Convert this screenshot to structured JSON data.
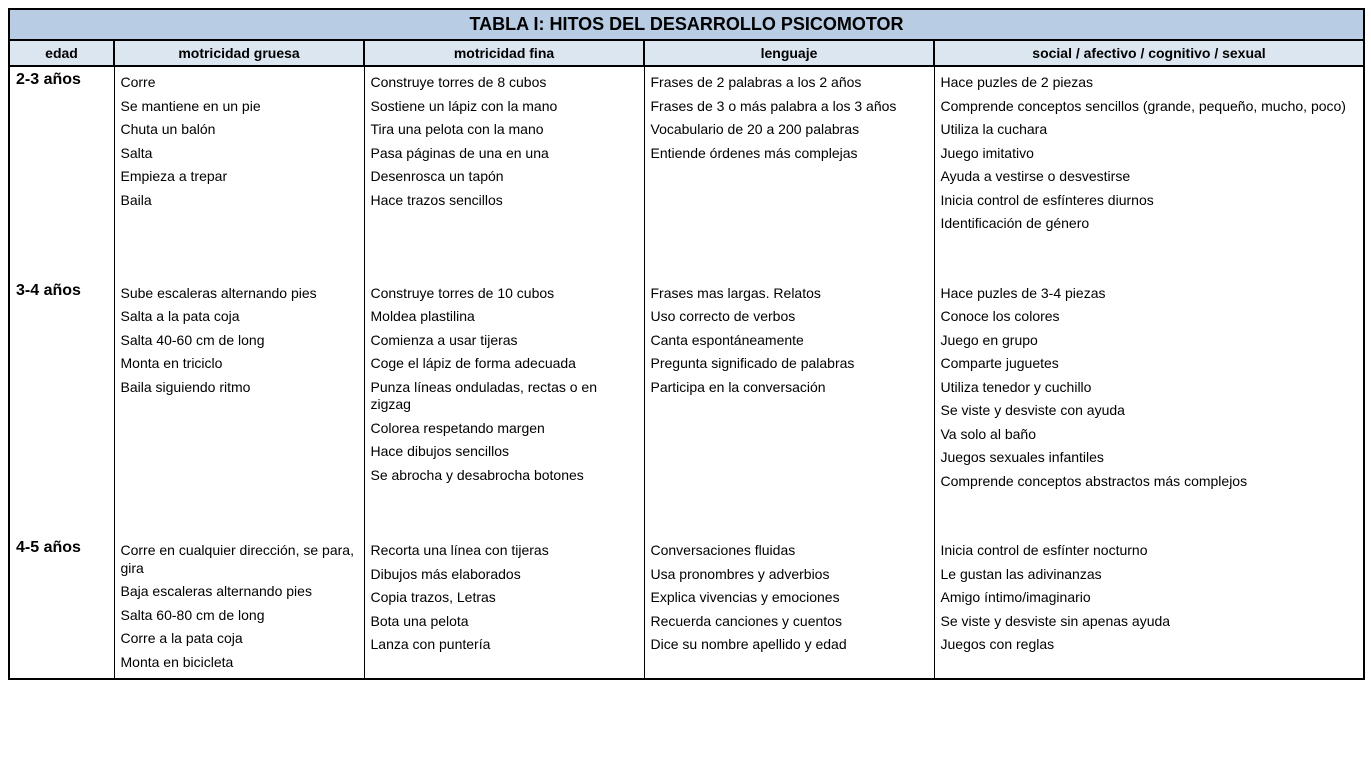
{
  "colors": {
    "title_bg": "#b8cce4",
    "header_bg": "#dce6f1",
    "border": "#000000",
    "text": "#000000",
    "background": "#ffffff"
  },
  "title": "TABLA I: HITOS DEL DESARROLLO PSICOMOTOR",
  "columns": [
    "edad",
    "motricidad gruesa",
    "motricidad fina",
    "lenguaje",
    "social / afectivo / cognitivo / sexual"
  ],
  "rows": [
    {
      "age": "2-3 años",
      "gruesa": [
        "Corre",
        "Se mantiene en un pie",
        "Chuta un balón",
        "Salta",
        "Empieza a trepar",
        "Baila"
      ],
      "fina": [
        "Construye torres de 8 cubos",
        "Sostiene un lápiz con la mano",
        "Tira una pelota con la mano",
        "Pasa páginas de una en una",
        "Desenrosca un tapón",
        "Hace trazos sencillos"
      ],
      "lenguaje": [
        "Frases de 2 palabras a los 2 años",
        "Frases de 3 o más palabra a los 3 años",
        "Vocabulario de 20 a 200 palabras",
        "Entiende órdenes más complejas"
      ],
      "social": [
        "Hace puzles de 2 piezas",
        "Comprende conceptos sencillos (grande, pequeño, mucho, poco)",
        "Utiliza la cuchara",
        "Juego imitativo",
        "Ayuda a vestirse o desvestirse",
        "Inicia control de esfínteres diurnos",
        "Identificación de género"
      ]
    },
    {
      "age": "3-4 años",
      "gruesa": [
        "Sube escaleras alternando pies",
        "Salta a  la pata coja",
        "Salta 40-60 cm de long",
        "Monta en triciclo",
        "Baila siguiendo ritmo"
      ],
      "fina": [
        "Construye torres de 10 cubos",
        "Moldea plastilina",
        "Comienza a usar tijeras",
        "Coge el lápiz de forma adecuada",
        "Punza  líneas onduladas, rectas o en zigzag",
        "Colorea respetando margen",
        "Hace dibujos sencillos",
        "Se abrocha y desabrocha botones"
      ],
      "lenguaje": [
        "Frases mas largas.  Relatos",
        "Uso correcto de verbos",
        "Canta espontáneamente",
        "Pregunta significado de palabras",
        "Participa en la conversación"
      ],
      "social": [
        "Hace puzles de 3-4 piezas",
        "Conoce los colores",
        "Juego en grupo",
        "Comparte juguetes",
        "Utiliza tenedor y cuchillo",
        "Se viste y desviste con ayuda",
        "Va solo al baño",
        "Juegos sexuales infantiles",
        "Comprende conceptos abstractos más  complejos"
      ]
    },
    {
      "age": "4-5 años",
      "gruesa": [
        "Corre en cualquier dirección, se para, gira",
        "Baja escaleras alternando pies",
        "Salta 60-80 cm de long",
        "Corre a la pata coja",
        "Monta en bicicleta"
      ],
      "fina": [
        "Recorta una línea con tijeras",
        "Dibujos más elaborados",
        "Copia trazos, Letras",
        "Bota una pelota",
        "Lanza con puntería"
      ],
      "lenguaje": [
        "Conversaciones fluidas",
        "Usa pronombres y adverbios",
        "Explica vivencias y emociones",
        "Recuerda canciones y cuentos",
        "Dice su nombre apellido y edad"
      ],
      "social": [
        "Inicia control de esfínter nocturno",
        "Le gustan las adivinanzas",
        "Amigo íntimo/imaginario",
        "Se viste y desviste sin apenas ayuda",
        " Juegos con reglas"
      ]
    }
  ]
}
